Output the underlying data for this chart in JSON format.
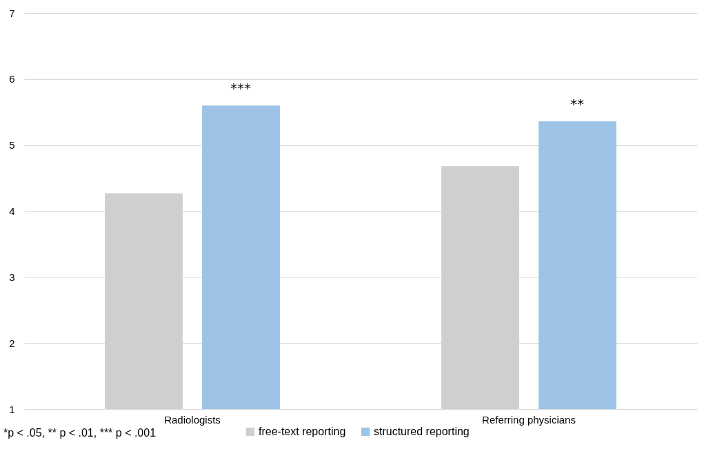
{
  "chart_data": {
    "type": "bar",
    "categories": [
      "Radiologists",
      "Referring physicians"
    ],
    "series": [
      {
        "name": "free-text reporting",
        "color": "#d0cece",
        "values": [
          4.27,
          4.68
        ]
      },
      {
        "name": "structured reporting",
        "color": "#9dc3e6",
        "values": [
          5.6,
          5.36
        ]
      }
    ],
    "ylim": [
      1,
      7
    ],
    "yticks": [
      1,
      2,
      3,
      4,
      5,
      6,
      7
    ],
    "grid": "y",
    "legend": "bottom",
    "annotations": [
      "***",
      "**",
      "*p < .05, ** p < .01, *** p < .001"
    ]
  }
}
